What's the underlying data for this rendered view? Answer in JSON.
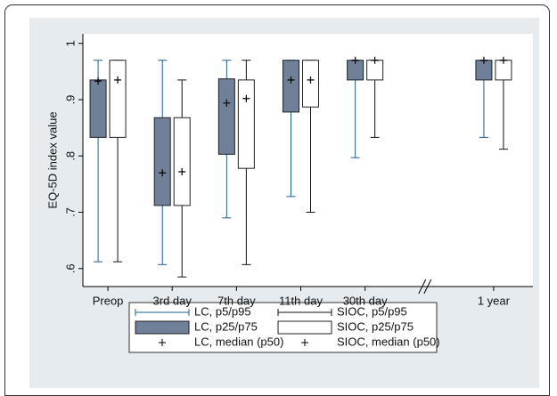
{
  "chart_data": {
    "type": "box",
    "y_label": "EQ-5D index value",
    "categories": [
      "Preop",
      "3rd day",
      "7th day",
      "11th day",
      "30th day",
      null,
      "1 year"
    ],
    "ylim": [
      0.568,
      1.017
    ],
    "yticks": [
      {
        "value": 0.6,
        "label": ".6"
      },
      {
        "value": 0.7,
        "label": ".7"
      },
      {
        "value": 0.8,
        "label": ".8"
      },
      {
        "value": 0.9,
        "label": ".9"
      },
      1
    ],
    "grid": false,
    "series": [
      {
        "name": "LC",
        "whisker_label": "LC, p5/p95",
        "box_label": "LC, p25/p75",
        "median_label": "LC, median (p50)",
        "color": "#1f5f8b",
        "fill": "#6f8098",
        "p5": [
          0.612,
          0.607,
          0.69,
          0.728,
          0.797,
          null,
          0.833
        ],
        "p25": [
          0.833,
          0.712,
          0.803,
          0.878,
          0.935,
          null,
          0.935
        ],
        "p50": [
          0.933,
          0.77,
          0.894,
          0.935,
          0.97,
          null,
          0.97
        ],
        "p75": [
          0.935,
          0.868,
          0.937,
          0.97,
          0.97,
          null,
          0.97
        ],
        "p95": [
          0.97,
          0.97,
          0.97,
          0.97,
          0.97,
          null,
          0.97
        ]
      },
      {
        "name": "SIOC",
        "whisker_label": "SIOC, p5/p95",
        "box_label": "SIOC, p25/p75",
        "median_label": "SIOC, median (p50)",
        "color": "#111111",
        "fill": "#ffffff",
        "p5": [
          0.612,
          0.585,
          0.607,
          0.7,
          0.833,
          null,
          0.812
        ],
        "p25": [
          0.833,
          0.712,
          0.778,
          0.887,
          0.935,
          null,
          0.935
        ],
        "p50": [
          0.935,
          0.772,
          0.902,
          0.935,
          0.97,
          null,
          0.97
        ],
        "p75": [
          0.97,
          0.868,
          0.935,
          0.97,
          0.97,
          null,
          0.97
        ],
        "p95": [
          0.97,
          0.935,
          0.97,
          0.97,
          0.97,
          null,
          0.97
        ]
      }
    ]
  }
}
